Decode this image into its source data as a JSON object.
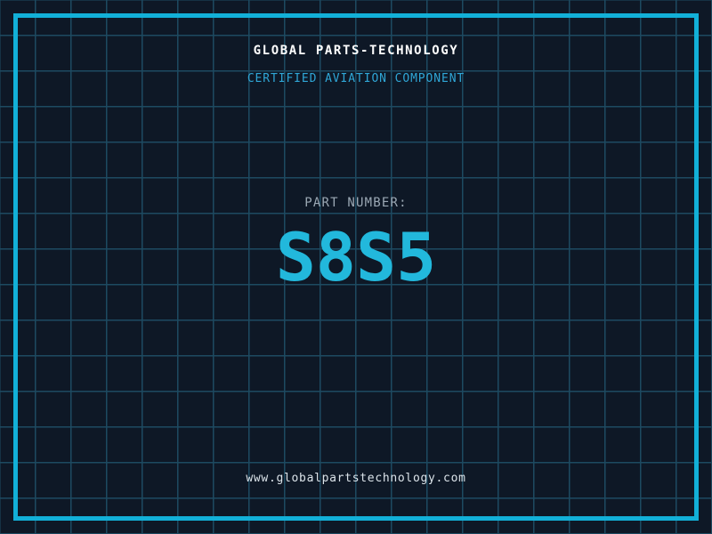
{
  "header": {
    "title": "GLOBAL PARTS-TECHNOLOGY",
    "subtitle": "CERTIFIED AVIATION COMPONENT"
  },
  "part": {
    "label": "PART NUMBER:",
    "number": "S8S5"
  },
  "footer": {
    "url": "www.globalpartstechnology.com"
  },
  "colors": {
    "background": "#0e1826",
    "grid_line": "#1d4a61",
    "frame_border": "#12b0d8",
    "title_text": "#ffffff",
    "subtitle_text": "#2fa6d6",
    "part_label_text": "#9ba8b4",
    "part_number_text": "#22b8dc",
    "footer_text": "#dbe3e9"
  }
}
